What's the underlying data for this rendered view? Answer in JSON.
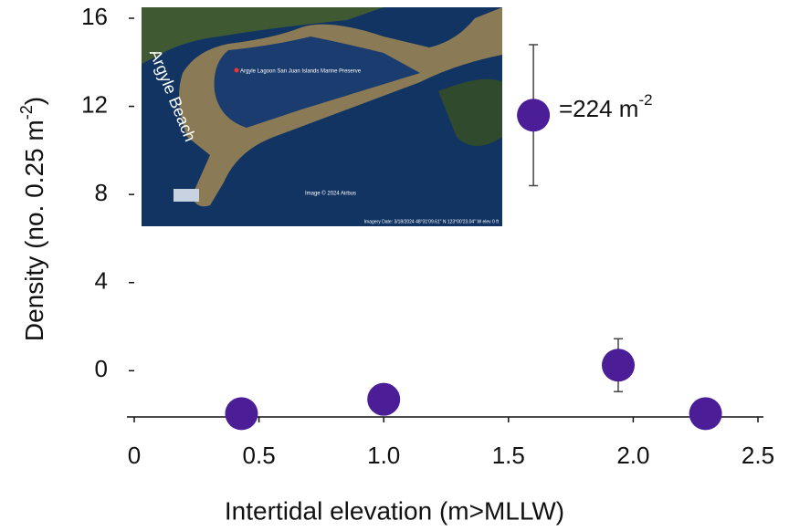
{
  "chart_data": {
    "type": "scatter",
    "xlabel": "Intertidal elevation (m>MLLW)",
    "ylabel": {
      "text": "Density (no. 0.25 m",
      "sup": "-2",
      "end": ")"
    },
    "x": [
      0.43,
      1.0,
      1.94,
      2.29,
      1.6
    ],
    "series": [
      {
        "color": "#4b1d96",
        "values": [
          -1.95,
          -1.3,
          0.25,
          -1.95,
          11.6
        ],
        "errors": [
          null,
          null,
          1.2,
          null,
          3.2
        ]
      }
    ],
    "xlim": [
      0,
      2.5
    ],
    "ylim": [
      -2.1,
      16
    ],
    "xticks": [
      0,
      {
        "value": 0.5,
        "label": "0.5"
      },
      {
        "value": 1.0,
        "label": "1.0"
      },
      {
        "value": 1.5,
        "label": "1.5"
      },
      {
        "value": 2.0,
        "label": "2.0"
      },
      {
        "value": 2.5,
        "label": "2.5"
      }
    ],
    "yticks": [
      0,
      4,
      8,
      12,
      16
    ],
    "annotation": {
      "text": "=224 m",
      "sup": "-2"
    },
    "inset": {
      "beach": "Argyle Beach",
      "place": "Argyle Lagoon San Juan Islands Marine Preserve",
      "credit": "Image © 2024 Airbus",
      "footer": "Imagery Date: 3/18/2024    48°31'09.61\" N  123°00'23.04\" W   elev   0 ft"
    }
  }
}
